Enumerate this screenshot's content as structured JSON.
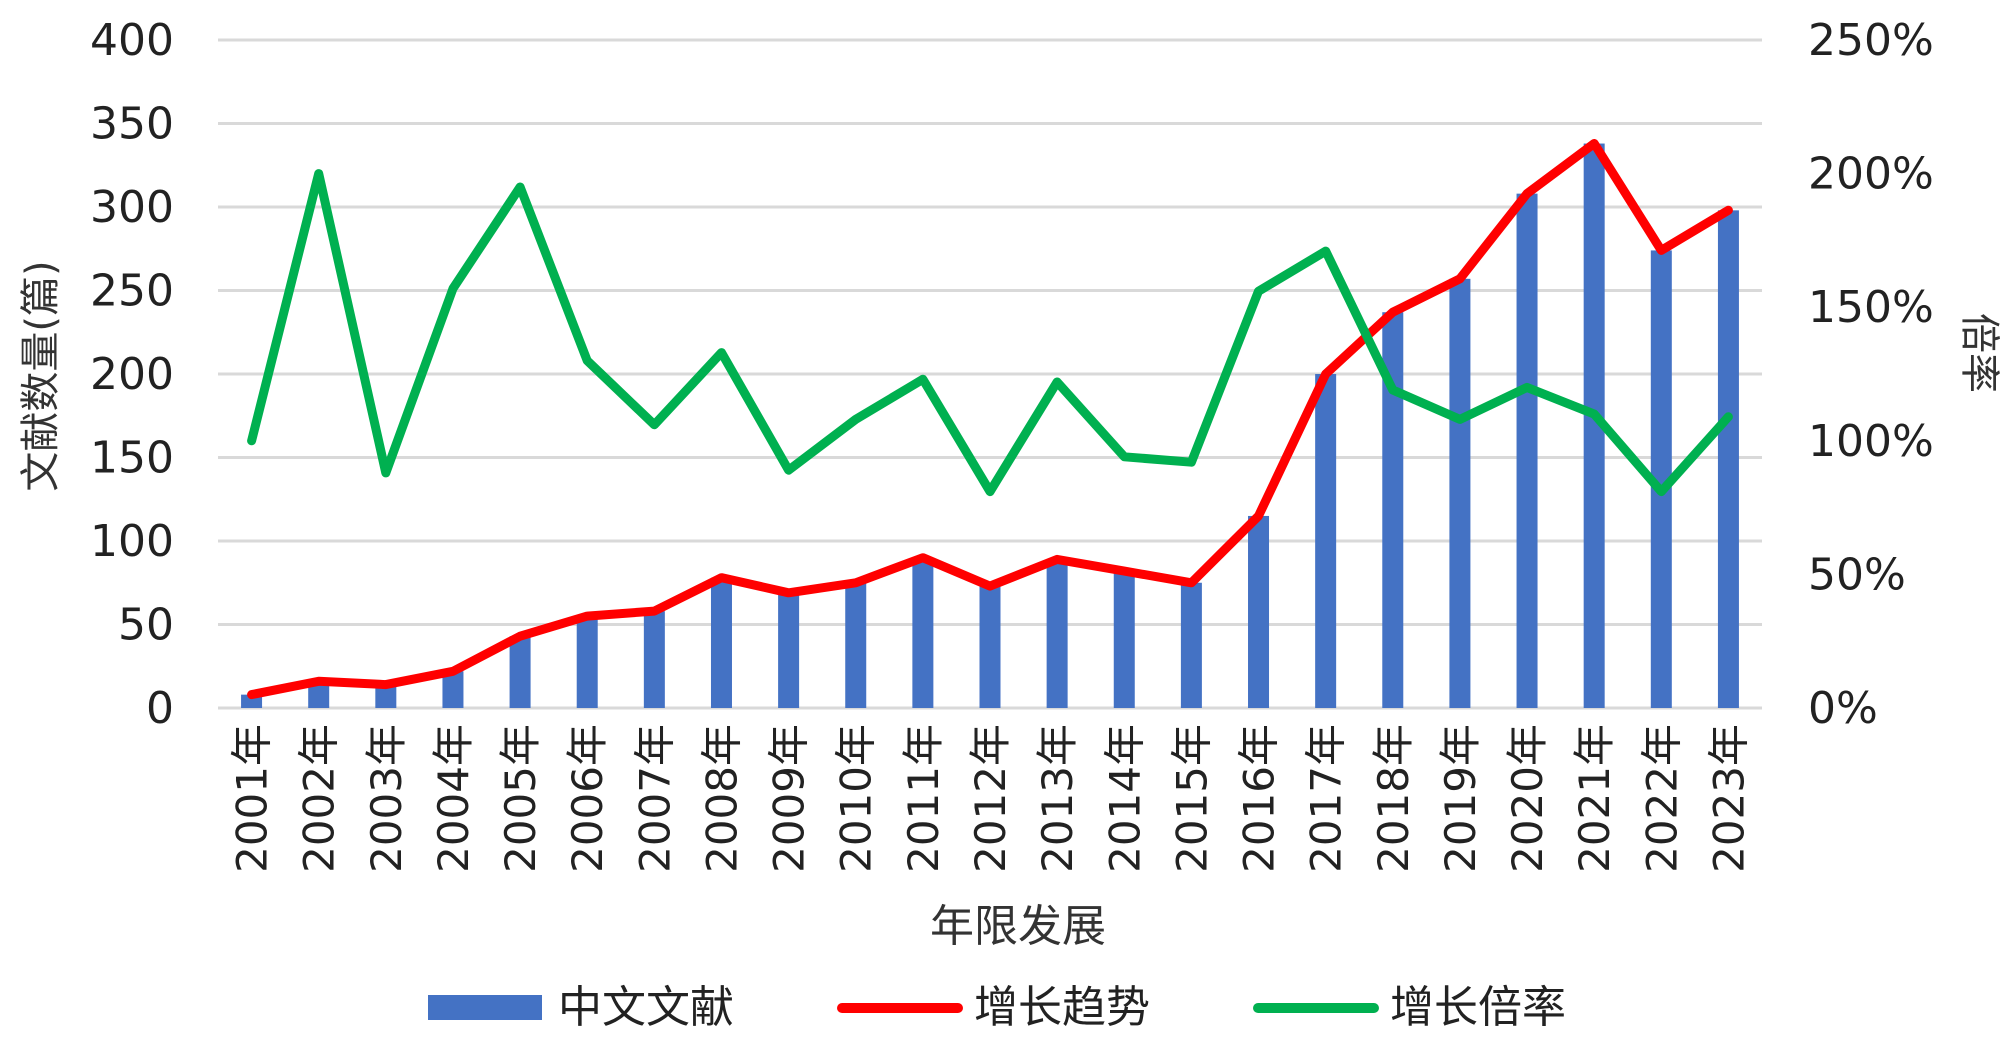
{
  "chart_data": {
    "type": "bar",
    "title": "",
    "xlabel": "年限发展",
    "ylabel": "文献数量(篇)",
    "y2label": "倍率",
    "ylim": [
      0,
      400
    ],
    "y2lim": [
      0,
      2.5
    ],
    "yticks": [
      "0",
      "50",
      "100",
      "150",
      "200",
      "250",
      "300",
      "350",
      "400"
    ],
    "y2ticks": [
      "0%",
      "50%",
      "100%",
      "150%",
      "200%",
      "250%"
    ],
    "grid": true,
    "legend_position": "bottom",
    "categories": [
      "2001年",
      "2002年",
      "2003年",
      "2004年",
      "2005年",
      "2006年",
      "2007年",
      "2008年",
      "2009年",
      "2010年",
      "2011年",
      "2012年",
      "2013年",
      "2014年",
      "2015年",
      "2016年",
      "2017年",
      "2018年",
      "2019年",
      "2020年",
      "2021年",
      "2022年",
      "2023年"
    ],
    "series": [
      {
        "name": "中文文献",
        "type": "bar",
        "axis": "left",
        "color": "#4472C4",
        "values": [
          8,
          16,
          14,
          22,
          43,
          55,
          58,
          78,
          69,
          75,
          90,
          73,
          89,
          82,
          75,
          115,
          200,
          237,
          257,
          308,
          338,
          274,
          298
        ]
      },
      {
        "name": "增长趋势",
        "type": "line",
        "axis": "left",
        "color": "#FF0000",
        "values": [
          8,
          16,
          14,
          22,
          43,
          55,
          58,
          78,
          69,
          75,
          90,
          73,
          89,
          82,
          75,
          115,
          200,
          237,
          257,
          308,
          338,
          274,
          298
        ]
      },
      {
        "name": "增长倍率",
        "type": "line",
        "axis": "right",
        "color": "#00B050",
        "values": [
          1.0,
          2.0,
          0.88,
          1.57,
          1.95,
          1.3,
          1.06,
          1.33,
          0.89,
          1.08,
          1.23,
          0.81,
          1.22,
          0.94,
          0.92,
          1.56,
          1.71,
          1.19,
          1.08,
          1.2,
          1.1,
          0.81,
          1.09
        ]
      }
    ]
  }
}
